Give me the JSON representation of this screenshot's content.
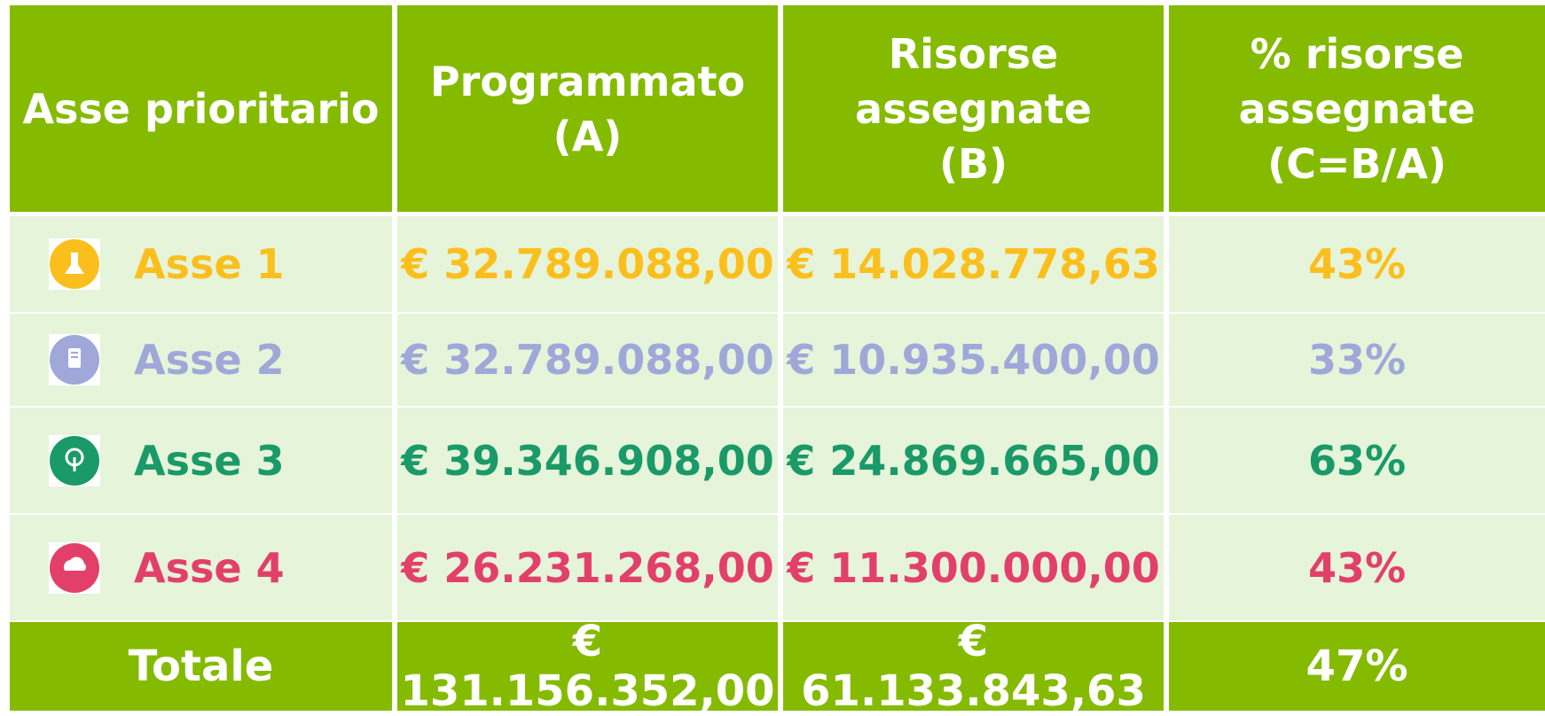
{
  "table": {
    "headers": [
      "Asse prioritario",
      "Programmato\n(A)",
      "Risorse\nassegnate\n(B)",
      "% risorse\nassegnate\n(C=B/A)"
    ],
    "rows": [
      {
        "color": "#fbbf1d",
        "cells": [
          "Asse 1",
          "€ 32.789.088,00",
          "€ 14.028.778,63",
          "43%"
        ]
      },
      {
        "color": "#9fa8d8",
        "cells": [
          "Asse 2",
          "€ 32.789.088,00",
          "€ 10.935.400,00",
          "33%"
        ]
      },
      {
        "color": "#1a9a68",
        "cells": [
          "Asse 3",
          "€ 39.346.908,00",
          "€ 24.869.665,00",
          "63%"
        ]
      },
      {
        "color": "#e2406a",
        "cells": [
          "Asse 4",
          "€ 26.231.268,00",
          "€ 11.300.000,00",
          "43%"
        ]
      }
    ],
    "total": [
      "Totale",
      "€ 131.156.352,00",
      "€ 61.133.843,63",
      "47%"
    ]
  }
}
